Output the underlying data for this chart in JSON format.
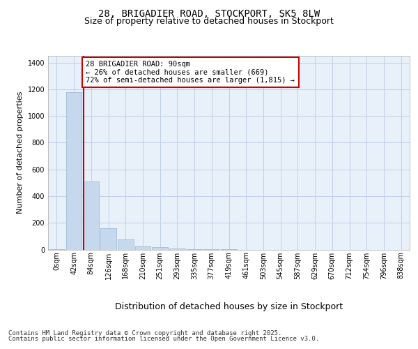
{
  "title_line1": "28, BRIGADIER ROAD, STOCKPORT, SK5 8LW",
  "title_line2": "Size of property relative to detached houses in Stockport",
  "xlabel": "Distribution of detached houses by size in Stockport",
  "ylabel": "Number of detached properties",
  "bar_color": "#c5d8ee",
  "bar_edge_color": "#a0bcd8",
  "background_color": "#e8f0fa",
  "grid_color": "#c0cfe8",
  "annotation_line_color": "#cc0000",
  "annotation_box_color": "#cc0000",
  "annotation_text": "28 BRIGADIER ROAD: 90sqm\n← 26% of detached houses are smaller (669)\n72% of semi-detached houses are larger (1,815) →",
  "categories": [
    "0sqm",
    "42sqm",
    "84sqm",
    "126sqm",
    "168sqm",
    "210sqm",
    "251sqm",
    "293sqm",
    "335sqm",
    "377sqm",
    "419sqm",
    "461sqm",
    "503sqm",
    "545sqm",
    "587sqm",
    "629sqm",
    "670sqm",
    "712sqm",
    "754sqm",
    "796sqm",
    "838sqm"
  ],
  "values": [
    5,
    1180,
    510,
    160,
    75,
    25,
    20,
    10,
    5,
    2,
    1,
    0,
    0,
    0,
    0,
    0,
    0,
    0,
    0,
    0,
    0
  ],
  "ylim": [
    0,
    1450
  ],
  "yticks": [
    0,
    200,
    400,
    600,
    800,
    1000,
    1200,
    1400
  ],
  "property_bar_index": 2,
  "footer_line1": "Contains HM Land Registry data © Crown copyright and database right 2025.",
  "footer_line2": "Contains public sector information licensed under the Open Government Licence v3.0.",
  "title_fontsize": 10,
  "subtitle_fontsize": 9,
  "ylabel_fontsize": 8,
  "xlabel_fontsize": 9,
  "tick_fontsize": 7,
  "annotation_fontsize": 7.5,
  "footer_fontsize": 6.5
}
